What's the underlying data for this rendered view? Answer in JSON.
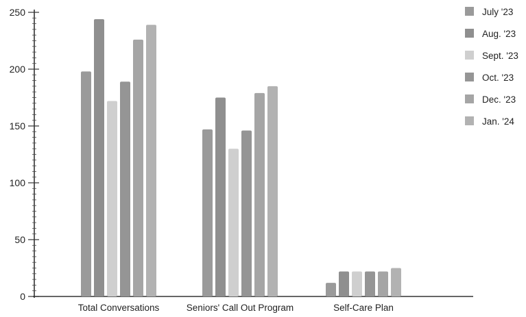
{
  "chart_data": {
    "type": "bar",
    "title": "",
    "xlabel": "",
    "ylabel": "",
    "ylim": [
      0,
      250
    ],
    "yticks": [
      0,
      50,
      100,
      150,
      200,
      250
    ],
    "grid": false,
    "legend_position": "top-right",
    "categories": [
      "Total Conversations",
      "Seniors' Call Out Program",
      "Self-Care Plan"
    ],
    "series": [
      {
        "name": "July '23",
        "color": "#9a9a9a",
        "values": [
          198,
          147,
          12
        ]
      },
      {
        "name": "Aug. '23",
        "color": "#8f8f8f",
        "values": [
          244,
          175,
          22
        ]
      },
      {
        "name": "Sept. '23",
        "color": "#cfcfcf",
        "values": [
          172,
          130,
          22
        ]
      },
      {
        "name": "Oct. '23",
        "color": "#959595",
        "values": [
          189,
          146,
          22
        ]
      },
      {
        "name": "Dec. '23",
        "color": "#a5a5a5",
        "values": [
          226,
          179,
          22
        ]
      },
      {
        "name": "Jan. '24",
        "color": "#b2b2b2",
        "values": [
          239,
          185,
          25
        ]
      }
    ]
  }
}
